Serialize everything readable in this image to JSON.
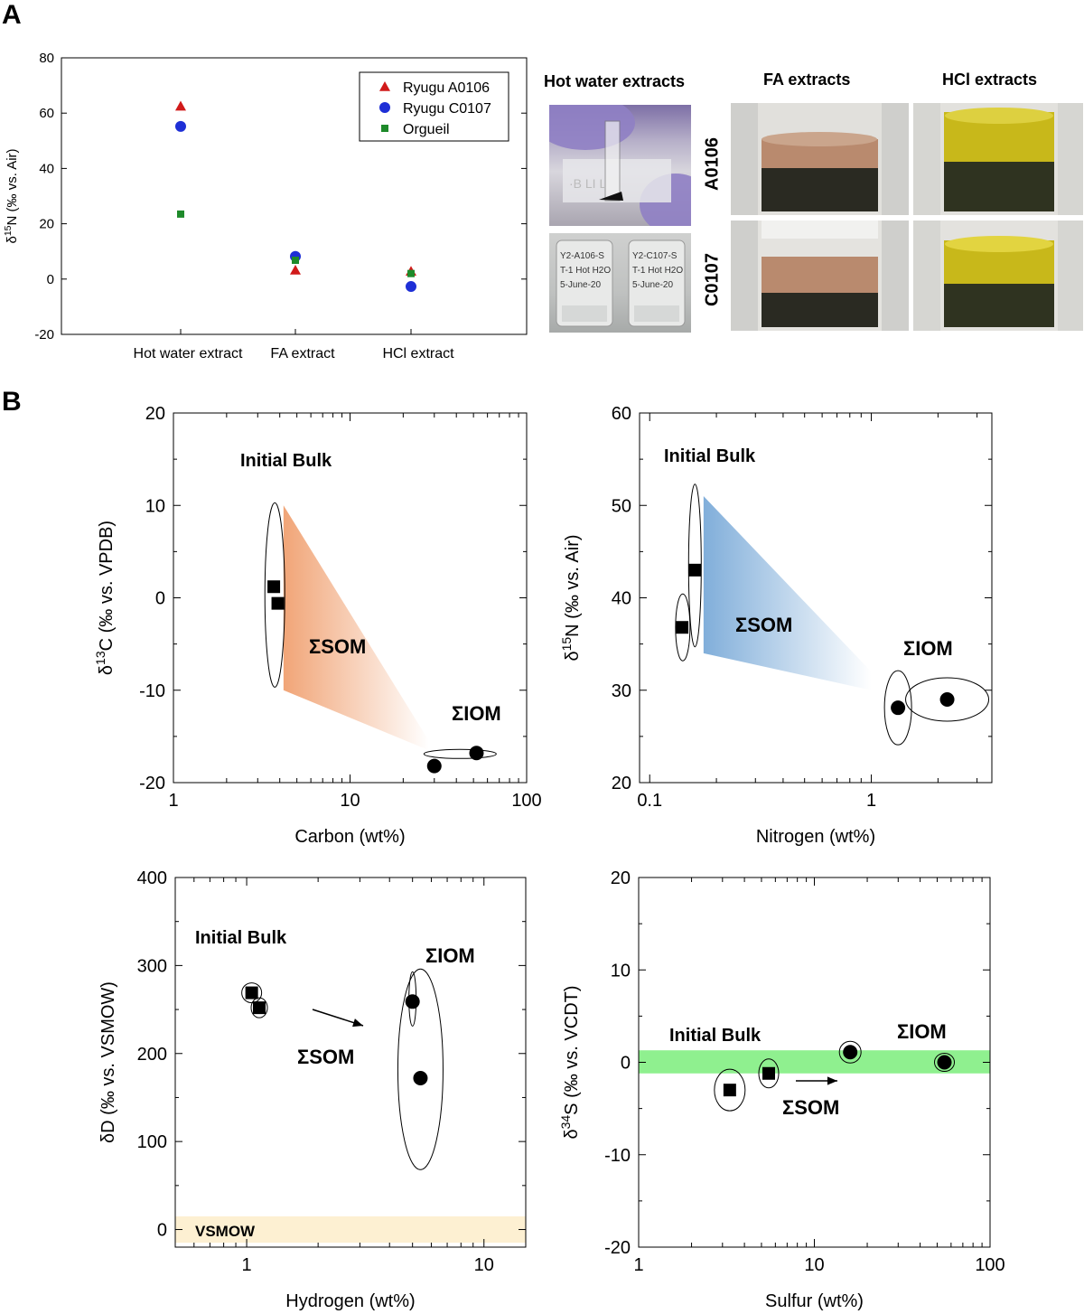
{
  "panels": {
    "a": "A",
    "b": "B"
  },
  "photos": {
    "titles": {
      "hot": "Hot water extracts",
      "fa": "FA extracts",
      "hcl": "HCl extracts"
    },
    "rows": [
      "A0106",
      "C0107"
    ],
    "vial_texts": [
      "Y2-A106-S",
      "T-1 Hot H2O",
      "5-June-20",
      "Y2-C107-S",
      "T-1 Hot H2O",
      "5-June-20"
    ],
    "colors": {
      "fa_liquid": "#b98a6e",
      "hcl_liquid": "#c8b81a",
      "dark": "#2a2a22",
      "glove": "#8f7fc4"
    }
  },
  "chart_data": [
    {
      "id": "A",
      "type": "scatter",
      "title": "",
      "ylabel": "δ15N (‰ vs. Air)",
      "ylim": [
        -20,
        80
      ],
      "yticks": [
        -20,
        0,
        20,
        40,
        60,
        80
      ],
      "categories": [
        "Hot water extract",
        "FA extract",
        "HCl extract"
      ],
      "series": [
        {
          "name": "Ryugu A0106",
          "marker": "triangle",
          "color": "#d11a1a",
          "values": [
            62.5,
            3.2,
            2.8
          ]
        },
        {
          "name": "Ryugu C0107",
          "marker": "circle",
          "color": "#1e2fd6",
          "values": [
            55.2,
            8.2,
            -2.7
          ]
        },
        {
          "name": "Orgueil",
          "marker": "square",
          "color": "#1e8a2a",
          "values": [
            23.5,
            6.8,
            2.0
          ]
        }
      ],
      "legend_position": "top-right"
    },
    {
      "id": "B1",
      "type": "scatter",
      "xscale": "log",
      "xlim": [
        1,
        100
      ],
      "xticks": [
        1,
        10,
        100
      ],
      "ylim": [
        -20,
        20
      ],
      "yticks": [
        -20,
        -10,
        0,
        10,
        20
      ],
      "xlabel": "Carbon (wt%)",
      "ylabel": "δ13C (‰ vs. VPDB)",
      "bulk": [
        {
          "x": 3.7,
          "y": 1.2
        },
        {
          "x": 3.9,
          "y": -0.6
        }
      ],
      "iom": [
        {
          "x": 30,
          "y": -18.2
        },
        {
          "x": 52,
          "y": -16.8
        }
      ],
      "annotations": {
        "bulk": "Initial Bulk",
        "som": "ΣSOM",
        "iom": "ΣIOM"
      },
      "band_color": "#f0a070"
    },
    {
      "id": "B2",
      "type": "scatter",
      "xscale": "log",
      "xlim": [
        0.09,
        3.5
      ],
      "xticks": [
        0.1,
        1
      ],
      "ylim": [
        20,
        60
      ],
      "yticks": [
        20,
        30,
        40,
        50,
        60
      ],
      "xlabel": "Nitrogen (wt%)",
      "ylabel": "δ15N (‰ vs. Air)",
      "bulk": [
        {
          "x": 0.14,
          "y": 36.8
        },
        {
          "x": 0.16,
          "y": 43.0
        }
      ],
      "iom": [
        {
          "x": 1.32,
          "y": 28.1
        },
        {
          "x": 2.2,
          "y": 29.0
        }
      ],
      "annotations": {
        "bulk": "Initial Bulk",
        "som": "ΣSOM",
        "iom": "ΣIOM"
      },
      "band_color": "#7aaad8"
    },
    {
      "id": "B3",
      "type": "scatter",
      "xscale": "log",
      "xlim": [
        0.5,
        15
      ],
      "xticks": [
        1,
        10
      ],
      "ylim": [
        -20,
        400
      ],
      "yticks": [
        0,
        100,
        200,
        300,
        400
      ],
      "xlabel": "Hydrogen (wt%)",
      "ylabel": "δD (‰ vs. VSMOW)",
      "bulk": [
        {
          "x": 1.05,
          "y": 269
        },
        {
          "x": 1.13,
          "y": 252
        }
      ],
      "iom": [
        {
          "x": 5.0,
          "y": 259
        },
        {
          "x": 5.4,
          "y": 172
        }
      ],
      "annotations": {
        "bulk": "Initial Bulk",
        "som": "ΣSOM",
        "iom": "ΣIOM",
        "ref": "VSMOW"
      },
      "ref_band": [
        -15,
        15
      ],
      "ref_color": "#fdf0d2"
    },
    {
      "id": "B4",
      "type": "scatter",
      "xscale": "log",
      "xlim": [
        1,
        100
      ],
      "xticks": [
        1,
        10,
        100
      ],
      "ylim": [
        -20,
        20
      ],
      "yticks": [
        -20,
        -10,
        0,
        10,
        20
      ],
      "xlabel": "Sulfur (wt%)",
      "ylabel": "δ34S (‰ vs. VCDT)",
      "bulk": [
        {
          "x": 3.3,
          "y": -3.0
        },
        {
          "x": 5.5,
          "y": -1.2
        }
      ],
      "iom": [
        {
          "x": 16,
          "y": 1.1
        },
        {
          "x": 55,
          "y": 0.0
        }
      ],
      "annotations": {
        "bulk": "Initial Bulk",
        "som": "ΣSOM",
        "iom": "ΣIOM"
      },
      "ref_band": [
        -1.2,
        1.3
      ],
      "ref_color": "#8ff08f"
    }
  ]
}
